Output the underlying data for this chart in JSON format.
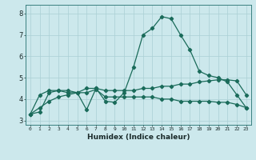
{
  "xlabel": "Humidex (Indice chaleur)",
  "ylabel": "",
  "background_color": "#cce8ec",
  "line_color": "#1a6b5a",
  "grid_color": "#aacfd4",
  "xlim": [
    -0.5,
    23.5
  ],
  "ylim": [
    2.8,
    8.4
  ],
  "xticks": [
    0,
    1,
    2,
    3,
    4,
    5,
    6,
    7,
    8,
    9,
    10,
    11,
    12,
    13,
    14,
    15,
    16,
    17,
    18,
    19,
    20,
    21,
    22,
    23
  ],
  "yticks": [
    3,
    4,
    5,
    6,
    7,
    8
  ],
  "series1_x": [
    0,
    1,
    2,
    3,
    4,
    5,
    6,
    7,
    8,
    9,
    10,
    11,
    12,
    13,
    14,
    15,
    16,
    17,
    18,
    19,
    20,
    21,
    22,
    23
  ],
  "series1_y": [
    3.3,
    4.2,
    4.4,
    4.4,
    4.3,
    4.3,
    4.3,
    4.45,
    4.1,
    4.1,
    4.1,
    4.1,
    4.1,
    4.1,
    4.0,
    4.0,
    3.9,
    3.9,
    3.9,
    3.9,
    3.85,
    3.85,
    3.75,
    3.6
  ],
  "series2_x": [
    0,
    1,
    2,
    3,
    4,
    5,
    6,
    7,
    8,
    9,
    10,
    11,
    12,
    13,
    14,
    15,
    16,
    17,
    18,
    19,
    20,
    21,
    22,
    23
  ],
  "series2_y": [
    3.3,
    3.4,
    4.3,
    4.4,
    4.4,
    4.3,
    3.5,
    4.5,
    3.9,
    3.85,
    4.3,
    5.5,
    7.0,
    7.3,
    7.85,
    7.75,
    7.0,
    6.3,
    5.3,
    5.1,
    5.0,
    4.8,
    4.2,
    3.6
  ],
  "series3_x": [
    0,
    1,
    2,
    3,
    4,
    5,
    6,
    7,
    8,
    9,
    10,
    11,
    12,
    13,
    14,
    15,
    16,
    17,
    18,
    19,
    20,
    21,
    22,
    23
  ],
  "series3_y": [
    3.3,
    3.6,
    3.9,
    4.1,
    4.2,
    4.3,
    4.5,
    4.5,
    4.4,
    4.4,
    4.4,
    4.4,
    4.5,
    4.5,
    4.6,
    4.6,
    4.7,
    4.7,
    4.8,
    4.85,
    4.9,
    4.9,
    4.85,
    4.2
  ]
}
